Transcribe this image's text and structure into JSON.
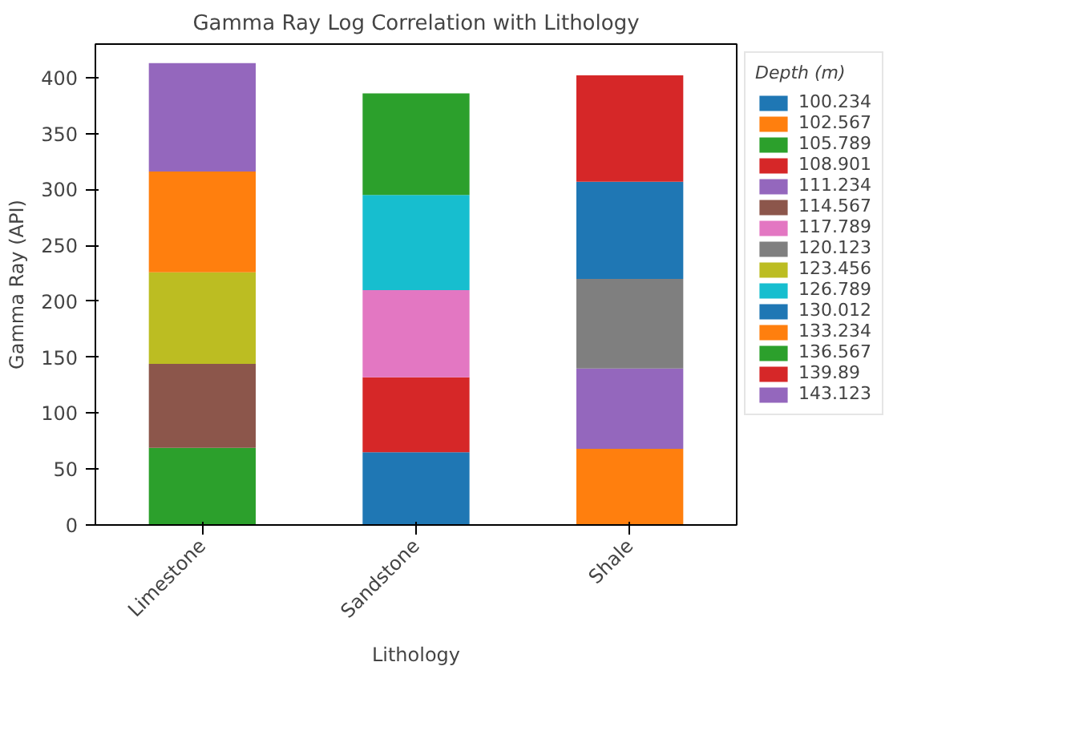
{
  "chart_data": {
    "type": "bar",
    "stacked": true,
    "title": "Gamma Ray Log Correlation with Lithology",
    "xlabel": "Lithology",
    "ylabel": "Gamma Ray (API)",
    "legend_title": "Depth (m)",
    "legend": "right",
    "grid": false,
    "categories": [
      "Limestone",
      "Sandstone",
      "Shale"
    ],
    "ylim": [
      0,
      430
    ],
    "yticks": [
      0,
      50,
      100,
      150,
      200,
      250,
      300,
      350,
      400
    ],
    "series": [
      {
        "name": "100.234",
        "color": "#1f77b4",
        "values": [
          null,
          65,
          null
        ]
      },
      {
        "name": "102.567",
        "color": "#ff7f0e",
        "values": [
          null,
          null,
          68
        ]
      },
      {
        "name": "105.789",
        "color": "#2ca02c",
        "values": [
          69,
          null,
          null
        ]
      },
      {
        "name": "108.901",
        "color": "#d62728",
        "values": [
          null,
          67,
          null
        ]
      },
      {
        "name": "111.234",
        "color": "#9467bd",
        "values": [
          null,
          null,
          72
        ]
      },
      {
        "name": "114.567",
        "color": "#8c564b",
        "values": [
          75,
          null,
          null
        ]
      },
      {
        "name": "117.789",
        "color": "#e377c2",
        "values": [
          null,
          78,
          null
        ]
      },
      {
        "name": "120.123",
        "color": "#7f7f7f",
        "values": [
          null,
          null,
          80
        ]
      },
      {
        "name": "123.456",
        "color": "#bcbd22",
        "values": [
          82,
          null,
          null
        ]
      },
      {
        "name": "126.789",
        "color": "#17becf",
        "values": [
          null,
          85,
          null
        ]
      },
      {
        "name": "130.012",
        "color": "#1f77b4",
        "values": [
          null,
          null,
          87
        ]
      },
      {
        "name": "133.234",
        "color": "#ff7f0e",
        "values": [
          90,
          null,
          null
        ]
      },
      {
        "name": "136.567",
        "color": "#2ca02c",
        "values": [
          null,
          91,
          null
        ]
      },
      {
        "name": "139.89",
        "color": "#d62728",
        "values": [
          null,
          null,
          95
        ]
      },
      {
        "name": "143.123",
        "color": "#9467bd",
        "values": [
          97,
          null,
          null
        ]
      }
    ]
  }
}
